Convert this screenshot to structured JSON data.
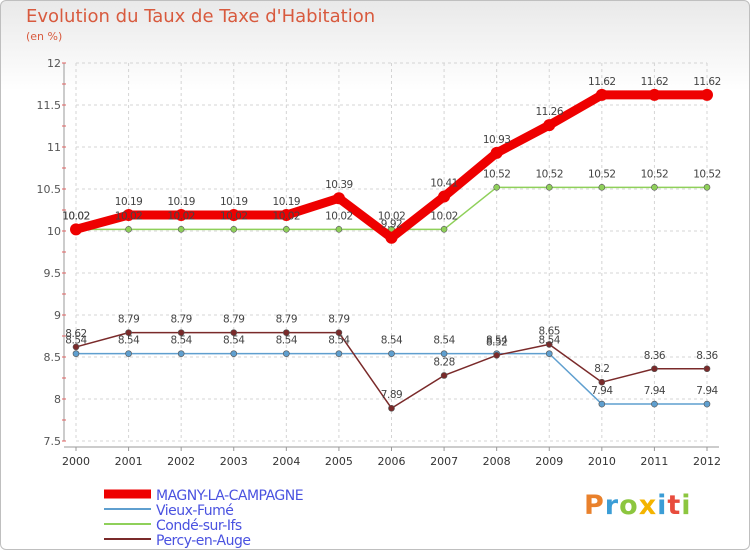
{
  "header": {
    "title": "Evolution du Taux de Taxe d'Habitation",
    "subtitle": "(en %)"
  },
  "logo": {
    "text": "Proxiti",
    "letters": [
      "P",
      "r",
      "o",
      "x",
      "i",
      "t",
      "i"
    ]
  },
  "chart_data": {
    "type": "line",
    "x": [
      "2000",
      "2001",
      "2002",
      "2003",
      "2004",
      "2005",
      "2006",
      "2007",
      "2008",
      "2009",
      "2010",
      "2011",
      "2012"
    ],
    "ylim": [
      7.5,
      12
    ],
    "yticks": [
      7.5,
      8,
      8.5,
      9,
      9.5,
      10,
      10.5,
      11,
      11.5,
      12
    ],
    "ytick_labels": [
      "7.5",
      "8",
      "8.5",
      "9",
      "9.5",
      "10",
      "10.5",
      "11",
      "11.5",
      "12"
    ],
    "grid": true,
    "legend_position": "bottom-left",
    "series": [
      {
        "name": "MAGNY-LA-CAMPAGNE",
        "color": "#ee0000",
        "values": [
          10.02,
          10.19,
          10.19,
          10.19,
          10.19,
          10.39,
          9.92,
          10.41,
          10.93,
          11.26,
          11.62,
          11.62,
          11.62
        ],
        "labels": [
          "10.02",
          "10.19",
          "10.19",
          "10.19",
          "10.19",
          "10.39",
          "9.92",
          "10.41",
          "10.93",
          "11.26",
          "11.62",
          "11.62",
          "11.62"
        ]
      },
      {
        "name": "Vieux-Fumé",
        "color": "#5f9fcf",
        "values": [
          8.54,
          8.54,
          8.54,
          8.54,
          8.54,
          8.54,
          8.54,
          8.54,
          8.54,
          8.54,
          7.94,
          7.94,
          7.94
        ],
        "labels": [
          "8.54",
          "8.54",
          "8.54",
          "8.54",
          "8.54",
          "8.54",
          "8.54",
          "8.54",
          "8.54",
          "8.54",
          "7.94",
          "7.94",
          "7.94"
        ]
      },
      {
        "name": "Condé-sur-Ifs",
        "color": "#8fd05a",
        "values": [
          10.02,
          10.02,
          10.02,
          10.02,
          10.02,
          10.02,
          10.02,
          10.02,
          10.52,
          10.52,
          10.52,
          10.52,
          10.52
        ],
        "labels": [
          "10.02",
          "10.02",
          "10.02",
          "10.02",
          "10.02",
          "10.02",
          "10.02",
          "10.02",
          "10.52",
          "10.52",
          "10.52",
          "10.52",
          "10.52"
        ]
      },
      {
        "name": "Percy-en-Auge",
        "color": "#7a2a2a",
        "values": [
          8.62,
          8.79,
          8.79,
          8.79,
          8.79,
          8.79,
          7.89,
          8.28,
          8.52,
          8.65,
          8.2,
          8.36,
          8.36
        ],
        "labels": [
          "8.62",
          "8.79",
          "8.79",
          "8.79",
          "8.79",
          "8.79",
          "7.89",
          "8.28",
          "8.52",
          "8.65",
          "8.2",
          "8.36",
          "8.36"
        ]
      }
    ]
  }
}
